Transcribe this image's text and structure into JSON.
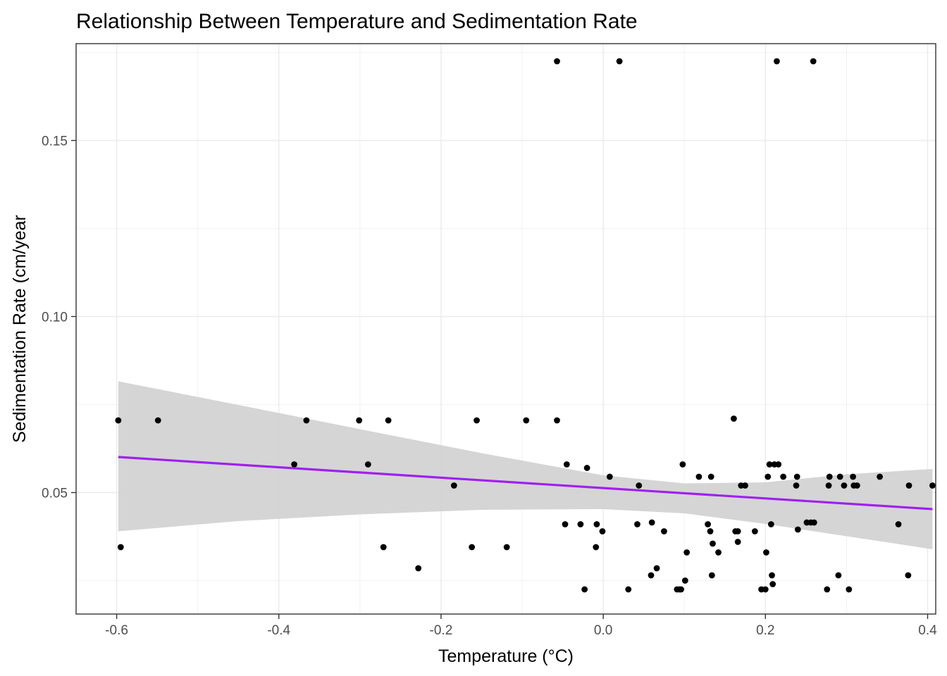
{
  "chart_data": {
    "type": "scatter",
    "title": "Relationship Between Temperature and Sedimentation Rate",
    "xlabel": "Temperature (°C)",
    "ylabel": "Sedimentation Rate (cm/year",
    "xlim": [
      -0.65,
      0.41
    ],
    "ylim": [
      0.0155,
      0.1775
    ],
    "x_ticks": [
      -0.6,
      -0.4,
      -0.2,
      0.0,
      0.2,
      0.4
    ],
    "x_tick_labels": [
      "-0.6",
      "-0.4",
      "-0.2",
      "0.0",
      "0.2",
      "0.4"
    ],
    "y_ticks": [
      0.05,
      0.1,
      0.15
    ],
    "y_tick_labels": [
      "0.05",
      "0.10",
      "0.15"
    ],
    "grid": true,
    "point_color": "#000000",
    "fit_color": "#a020f0",
    "band_color": "#d3d3d3",
    "points": [
      {
        "x": -0.598,
        "y": 0.0705
      },
      {
        "x": -0.595,
        "y": 0.0345
      },
      {
        "x": -0.549,
        "y": 0.0705
      },
      {
        "x": -0.381,
        "y": 0.058
      },
      {
        "x": -0.366,
        "y": 0.0705
      },
      {
        "x": -0.301,
        "y": 0.0705
      },
      {
        "x": -0.29,
        "y": 0.058
      },
      {
        "x": -0.271,
        "y": 0.0345
      },
      {
        "x": -0.265,
        "y": 0.0705
      },
      {
        "x": -0.228,
        "y": 0.0285
      },
      {
        "x": -0.184,
        "y": 0.052
      },
      {
        "x": -0.162,
        "y": 0.0345
      },
      {
        "x": -0.156,
        "y": 0.0705
      },
      {
        "x": -0.119,
        "y": 0.0345
      },
      {
        "x": -0.095,
        "y": 0.0705
      },
      {
        "x": -0.057,
        "y": 0.0705
      },
      {
        "x": -0.057,
        "y": 0.1725
      },
      {
        "x": -0.047,
        "y": 0.041
      },
      {
        "x": -0.045,
        "y": 0.058
      },
      {
        "x": -0.028,
        "y": 0.041
      },
      {
        "x": -0.023,
        "y": 0.0225
      },
      {
        "x": -0.02,
        "y": 0.057
      },
      {
        "x": -0.009,
        "y": 0.0345
      },
      {
        "x": -0.008,
        "y": 0.041
      },
      {
        "x": -0.001,
        "y": 0.039
      },
      {
        "x": 0.008,
        "y": 0.0545
      },
      {
        "x": 0.02,
        "y": 0.1725
      },
      {
        "x": 0.031,
        "y": 0.0225
      },
      {
        "x": 0.042,
        "y": 0.041
      },
      {
        "x": 0.044,
        "y": 0.052
      },
      {
        "x": 0.059,
        "y": 0.0265
      },
      {
        "x": 0.06,
        "y": 0.0415
      },
      {
        "x": 0.066,
        "y": 0.0285
      },
      {
        "x": 0.075,
        "y": 0.039
      },
      {
        "x": 0.091,
        "y": 0.0225
      },
      {
        "x": 0.094,
        "y": 0.0225
      },
      {
        "x": 0.096,
        "y": 0.0225
      },
      {
        "x": 0.098,
        "y": 0.058
      },
      {
        "x": 0.101,
        "y": 0.025
      },
      {
        "x": 0.103,
        "y": 0.033
      },
      {
        "x": 0.118,
        "y": 0.0545
      },
      {
        "x": 0.129,
        "y": 0.041
      },
      {
        "x": 0.132,
        "y": 0.039
      },
      {
        "x": 0.133,
        "y": 0.0545
      },
      {
        "x": 0.134,
        "y": 0.0265
      },
      {
        "x": 0.135,
        "y": 0.0355
      },
      {
        "x": 0.142,
        "y": 0.033
      },
      {
        "x": 0.161,
        "y": 0.071
      },
      {
        "x": 0.163,
        "y": 0.039
      },
      {
        "x": 0.166,
        "y": 0.039
      },
      {
        "x": 0.166,
        "y": 0.036
      },
      {
        "x": 0.17,
        "y": 0.052
      },
      {
        "x": 0.175,
        "y": 0.052
      },
      {
        "x": 0.187,
        "y": 0.039
      },
      {
        "x": 0.195,
        "y": 0.0225
      },
      {
        "x": 0.2,
        "y": 0.0225
      },
      {
        "x": 0.201,
        "y": 0.033
      },
      {
        "x": 0.203,
        "y": 0.0545
      },
      {
        "x": 0.205,
        "y": 0.058
      },
      {
        "x": 0.207,
        "y": 0.041
      },
      {
        "x": 0.208,
        "y": 0.0265
      },
      {
        "x": 0.209,
        "y": 0.024
      },
      {
        "x": 0.211,
        "y": 0.058
      },
      {
        "x": 0.214,
        "y": 0.1725
      },
      {
        "x": 0.216,
        "y": 0.058
      },
      {
        "x": 0.222,
        "y": 0.0545
      },
      {
        "x": 0.238,
        "y": 0.052
      },
      {
        "x": 0.239,
        "y": 0.0545
      },
      {
        "x": 0.24,
        "y": 0.0395
      },
      {
        "x": 0.251,
        "y": 0.0415
      },
      {
        "x": 0.256,
        "y": 0.0415
      },
      {
        "x": 0.26,
        "y": 0.0415
      },
      {
        "x": 0.259,
        "y": 0.1725
      },
      {
        "x": 0.276,
        "y": 0.0225
      },
      {
        "x": 0.278,
        "y": 0.052
      },
      {
        "x": 0.279,
        "y": 0.0545
      },
      {
        "x": 0.29,
        "y": 0.0265
      },
      {
        "x": 0.292,
        "y": 0.0545
      },
      {
        "x": 0.297,
        "y": 0.052
      },
      {
        "x": 0.303,
        "y": 0.0225
      },
      {
        "x": 0.308,
        "y": 0.0545
      },
      {
        "x": 0.309,
        "y": 0.052
      },
      {
        "x": 0.313,
        "y": 0.052
      },
      {
        "x": 0.341,
        "y": 0.0545
      },
      {
        "x": 0.364,
        "y": 0.041
      },
      {
        "x": 0.376,
        "y": 0.0265
      },
      {
        "x": 0.377,
        "y": 0.052
      },
      {
        "x": 0.406,
        "y": 0.052
      }
    ],
    "fit_line": {
      "x": [
        -0.598,
        0.406
      ],
      "y": [
        0.0601,
        0.0453
      ]
    },
    "confidence_band": {
      "x": [
        -0.598,
        -0.45,
        -0.3,
        -0.15,
        0.0,
        0.1,
        0.2,
        0.3,
        0.406
      ],
      "lower": [
        0.039,
        0.0419,
        0.0438,
        0.0451,
        0.0453,
        0.0441,
        0.0411,
        0.0376,
        0.0339
      ],
      "upper": [
        0.0816,
        0.0749,
        0.068,
        0.0612,
        0.0549,
        0.0526,
        0.0529,
        0.0552,
        0.0567
      ]
    }
  }
}
